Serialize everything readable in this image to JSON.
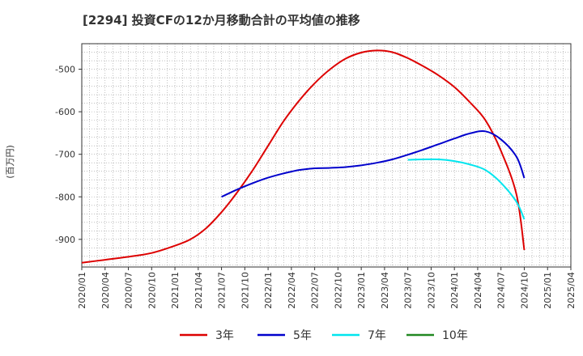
{
  "chart_data": {
    "type": "line",
    "title": "[2294]  投資CFの12か月移動合計の平均値の推移",
    "ylabel": "(百万円)",
    "xlabel": "",
    "x_ticks": [
      "2020/01",
      "2020/04",
      "2020/07",
      "2020/10",
      "2021/01",
      "2021/04",
      "2021/07",
      "2021/10",
      "2022/01",
      "2022/04",
      "2022/07",
      "2022/10",
      "2023/01",
      "2023/04",
      "2023/07",
      "2023/10",
      "2024/01",
      "2024/04",
      "2024/07",
      "2024/10",
      "2025/01",
      "2025/04"
    ],
    "y_ticks": [
      -500,
      -600,
      -700,
      -800,
      -900
    ],
    "ylim": [
      -965,
      -440
    ],
    "xlim": [
      "2020/01",
      "2025/04"
    ],
    "grid": true,
    "legend_position": "bottom",
    "series": [
      {
        "name": "3年",
        "color": "#dd0000",
        "points": [
          [
            "2020/01",
            -955
          ],
          [
            "2020/04",
            -948
          ],
          [
            "2020/07",
            -941
          ],
          [
            "2020/10",
            -932
          ],
          [
            "2021/01",
            -915
          ],
          [
            "2021/03",
            -900
          ],
          [
            "2021/05",
            -874
          ],
          [
            "2021/07",
            -836
          ],
          [
            "2021/09",
            -790
          ],
          [
            "2021/11",
            -738
          ],
          [
            "2022/01",
            -680
          ],
          [
            "2022/03",
            -622
          ],
          [
            "2022/05",
            -574
          ],
          [
            "2022/07",
            -533
          ],
          [
            "2022/09",
            -500
          ],
          [
            "2022/11",
            -475
          ],
          [
            "2023/01",
            -461
          ],
          [
            "2023/03",
            -456
          ],
          [
            "2023/05",
            -460
          ],
          [
            "2023/07",
            -474
          ],
          [
            "2023/09",
            -493
          ],
          [
            "2023/11",
            -515
          ],
          [
            "2024/01",
            -542
          ],
          [
            "2024/03",
            -578
          ],
          [
            "2024/05",
            -620
          ],
          [
            "2024/07",
            -692
          ],
          [
            "2024/09",
            -795
          ],
          [
            "2024/10",
            -925
          ]
        ]
      },
      {
        "name": "5年",
        "color": "#0000cc",
        "points": [
          [
            "2021/07",
            -800
          ],
          [
            "2021/09",
            -783
          ],
          [
            "2021/11",
            -768
          ],
          [
            "2022/01",
            -755
          ],
          [
            "2022/03",
            -745
          ],
          [
            "2022/05",
            -737
          ],
          [
            "2022/07",
            -733
          ],
          [
            "2022/09",
            -732
          ],
          [
            "2022/11",
            -730
          ],
          [
            "2023/01",
            -726
          ],
          [
            "2023/03",
            -720
          ],
          [
            "2023/05",
            -712
          ],
          [
            "2023/07",
            -701
          ],
          [
            "2023/09",
            -689
          ],
          [
            "2023/11",
            -676
          ],
          [
            "2024/01",
            -663
          ],
          [
            "2024/03",
            -651
          ],
          [
            "2024/05",
            -646
          ],
          [
            "2024/07",
            -665
          ],
          [
            "2024/09",
            -706
          ],
          [
            "2024/10",
            -756
          ]
        ]
      },
      {
        "name": "7年",
        "color": "#00e5ee",
        "points": [
          [
            "2023/07",
            -713
          ],
          [
            "2023/09",
            -712
          ],
          [
            "2023/11",
            -712
          ],
          [
            "2024/01",
            -716
          ],
          [
            "2024/03",
            -724
          ],
          [
            "2024/05",
            -737
          ],
          [
            "2024/07",
            -767
          ],
          [
            "2024/09",
            -812
          ],
          [
            "2024/10",
            -853
          ]
        ]
      },
      {
        "name": "10年",
        "color": "#228822",
        "points": []
      }
    ]
  }
}
